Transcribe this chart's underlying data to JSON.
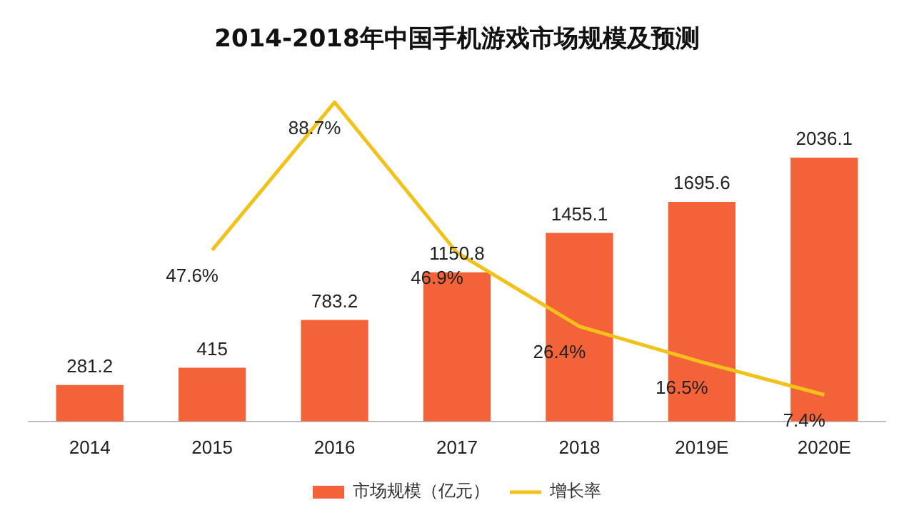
{
  "chart_data": {
    "type": "bar",
    "title": "2014-2018年中国手机游戏市场规模及预测",
    "categories": [
      "2014",
      "2015",
      "2016",
      "2017",
      "2018",
      "2019E",
      "2020E"
    ],
    "series": [
      {
        "name": "市场规模（亿元）",
        "color": "#f4623a",
        "values": [
          281.2,
          415,
          783.2,
          1150.8,
          1455.1,
          1695.6,
          2036.1
        ]
      },
      {
        "name": "增长率",
        "type": "line",
        "axis": "y2",
        "color": "#f2c21b",
        "values": [
          null,
          47.6,
          88.7,
          46.9,
          26.4,
          16.5,
          7.4
        ],
        "value_labels": [
          null,
          "47.6%",
          "88.7%",
          "46.9%",
          "26.4%",
          "16.5%",
          "7.4%"
        ]
      }
    ],
    "tick_labels": "x",
    "legend": "bottom",
    "data_labels": true,
    "marker": "none"
  }
}
